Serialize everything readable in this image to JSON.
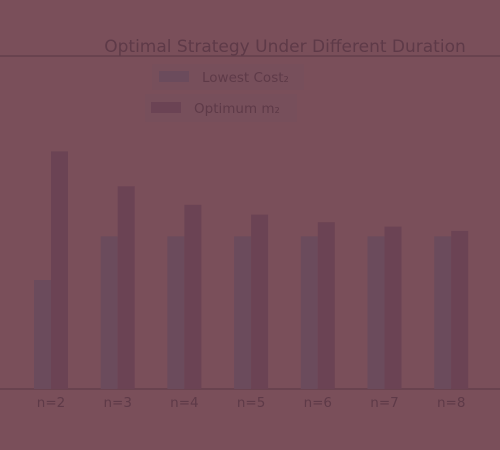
{
  "chart_data": {
    "type": "bar",
    "title": "Optimal Strategy Under Different Duration",
    "categories": [
      "n=2",
      "n=3",
      "n=4",
      "n=5",
      "n=6",
      "n=7",
      "n=8"
    ],
    "series": [
      {
        "name": "Lowest Cost₂",
        "values": [
          1.0,
          1.4,
          1.4,
          1.4,
          1.4,
          1.4,
          1.4
        ]
      },
      {
        "name": "Optimum m₂",
        "values": [
          2.18,
          1.86,
          1.69,
          1.6,
          1.53,
          1.49,
          1.45
        ]
      }
    ],
    "xlabel": "",
    "ylabel": "",
    "ylim": [
      0,
      3.0
    ],
    "grid": false,
    "legend_position": "top-center",
    "colors": {
      "background": "#7a4f5a",
      "series1": "#6b4b5c",
      "series2": "#6b4354",
      "text": "#5e3a48",
      "axis": "#5f3c49"
    }
  }
}
